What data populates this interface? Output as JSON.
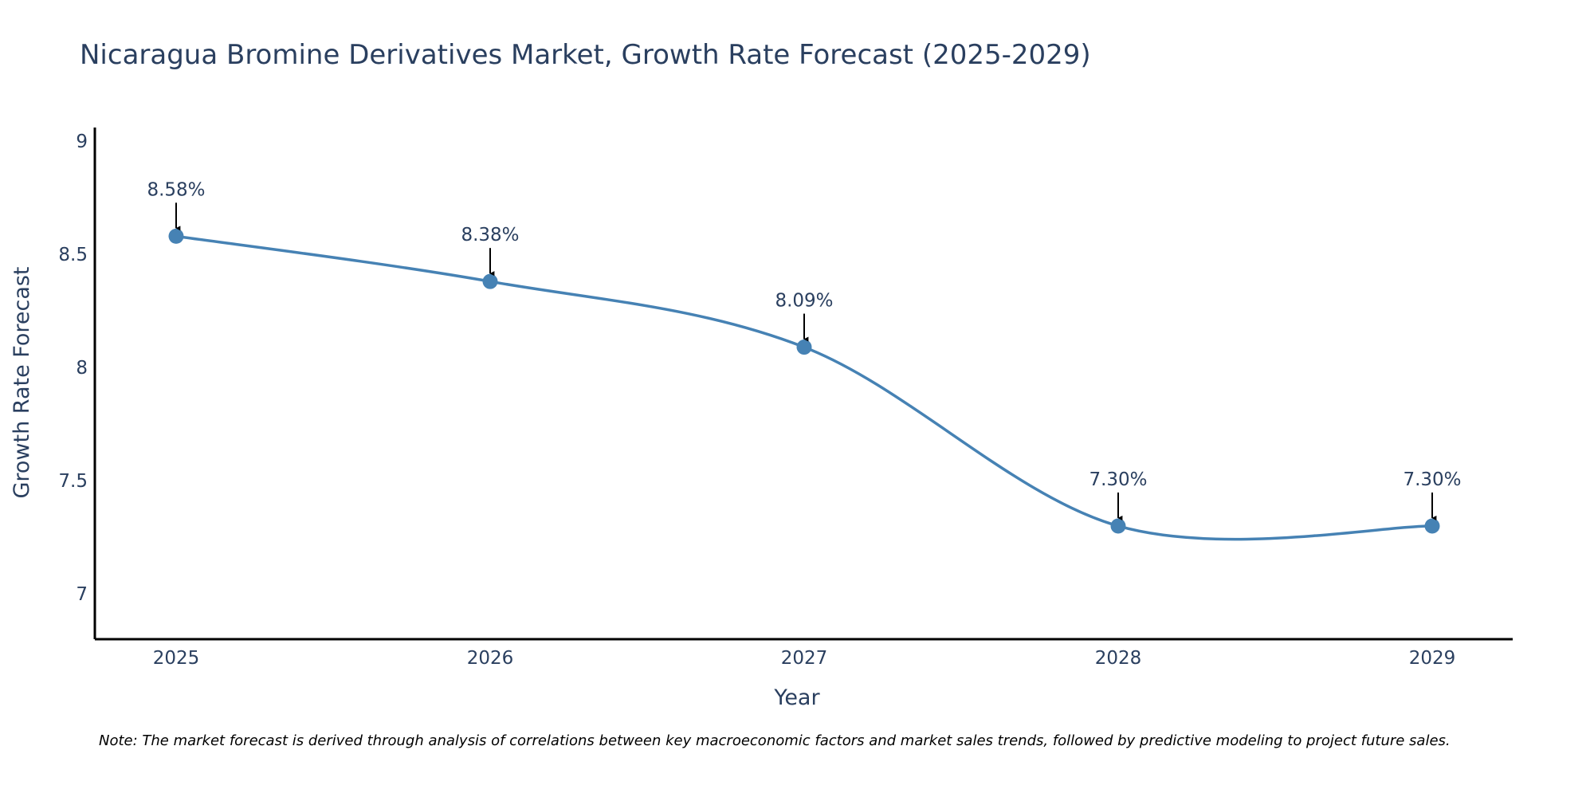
{
  "chart_data": {
    "type": "line",
    "title": "Nicaragua Bromine Derivatives Market, Growth Rate Forecast (2025-2029)",
    "xlabel": "Year",
    "ylabel": "Growth Rate Forecast",
    "categories": [
      "2025",
      "2026",
      "2027",
      "2028",
      "2029"
    ],
    "series": [
      {
        "name": "Growth Rate Forecast",
        "values": [
          8.58,
          8.38,
          8.09,
          7.3,
          7.3
        ],
        "labels": [
          "8.58%",
          "8.38%",
          "8.09%",
          "7.30%",
          "7.30%"
        ]
      }
    ],
    "ylim": [
      6.8,
      9.06
    ],
    "yticks": [
      7,
      7.5,
      8,
      8.5,
      9
    ],
    "ytick_labels": [
      "7",
      "7.5",
      "8",
      "8.5",
      "9"
    ],
    "grid": false,
    "line_color": "#4682b4",
    "annotation_color": "#000000",
    "spline": true
  },
  "note": "Note: The market forecast is derived through analysis of correlations between key macroeconomic factors and market sales trends, followed by predictive modeling to project future sales."
}
